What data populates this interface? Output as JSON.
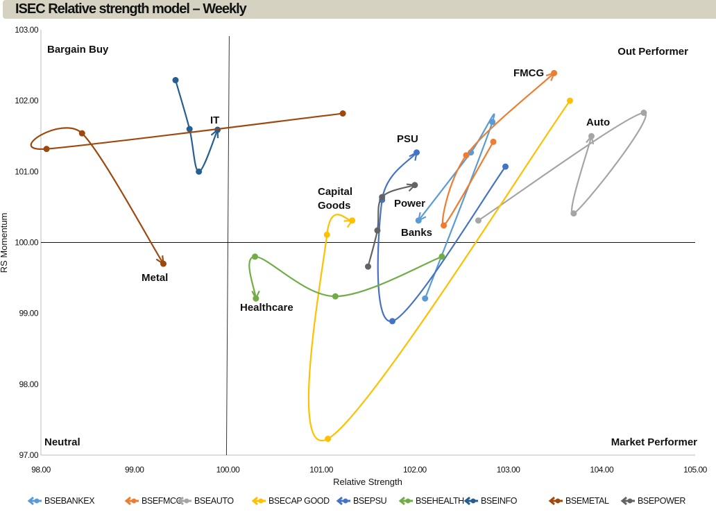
{
  "chart_data": {
    "type": "scatter",
    "title": "ISEC Relative strength model – Weekly",
    "xlabel": "Relative Strength",
    "ylabel": "RS Momentum",
    "xlim": [
      98,
      105
    ],
    "ylim": [
      97,
      103
    ],
    "xticks": [
      "98.00",
      "99.00",
      "100.00",
      "101.00",
      "102.00",
      "103.00",
      "104.00",
      "105.00"
    ],
    "yticks": [
      "97.00",
      "98.00",
      "99.00",
      "100.00",
      "101.00",
      "102.00",
      "103.00"
    ],
    "reference": {
      "x": 100,
      "y": 100
    },
    "quadrants": {
      "top_left": "Bargain Buy",
      "top_right": "Out Performer",
      "bottom_left": "Neutral",
      "bottom_right": "Market Performer"
    },
    "legend_position": "bottom",
    "series": [
      {
        "name": "BSEBANKEX",
        "label": "Banks",
        "color": "#5b9bd5",
        "x": [
          102.11,
          102.83,
          102.6,
          102.04
        ],
        "y": [
          99.21,
          101.7,
          101.27,
          100.31
        ]
      },
      {
        "name": "BSEFMCG",
        "label": "FMCG",
        "color": "#ed7d31",
        "x": [
          102.84,
          102.31,
          102.55,
          103.49
        ],
        "y": [
          101.42,
          100.24,
          101.23,
          102.39
        ]
      },
      {
        "name": "BSEAUTO",
        "label": "Auto",
        "color": "#a5a5a5",
        "x": [
          102.68,
          104.45,
          103.7,
          103.89
        ],
        "y": [
          100.31,
          101.83,
          100.41,
          101.5
        ]
      },
      {
        "name": "BSECAP GOOD",
        "label": "Capital Goods",
        "color": "#ffc000",
        "x": [
          103.66,
          101.07,
          101.06,
          101.33
        ],
        "y": [
          102.0,
          97.23,
          100.11,
          100.31
        ]
      },
      {
        "name": "BSEPSU",
        "label": "PSU",
        "color": "#4472c4",
        "x": [
          102.97,
          101.76,
          101.65,
          102.02
        ],
        "y": [
          101.07,
          98.89,
          100.6,
          101.27
        ]
      },
      {
        "name": "BSEHEALTH",
        "label": "Healthcare",
        "color": "#70ad47",
        "x": [
          102.29,
          101.15,
          100.29,
          100.3
        ],
        "y": [
          99.8,
          99.24,
          99.8,
          99.21
        ]
      },
      {
        "name": "BSEINFO",
        "label": "IT",
        "color": "#255e91",
        "x": [
          99.44,
          99.59,
          99.69,
          99.89
        ],
        "y": [
          102.29,
          101.6,
          101.0,
          101.59
        ]
      },
      {
        "name": "BSEMETAL",
        "label": "Metal",
        "color": "#9e480e",
        "x": [
          101.23,
          98.06,
          98.44,
          99.31
        ],
        "y": [
          101.82,
          101.32,
          101.54,
          99.7
        ]
      },
      {
        "name": "BSEPOWER",
        "label": "Power",
        "color": "#636363",
        "x": [
          101.5,
          101.6,
          101.65,
          102.0
        ],
        "y": [
          99.66,
          100.17,
          100.64,
          100.81
        ]
      }
    ]
  }
}
